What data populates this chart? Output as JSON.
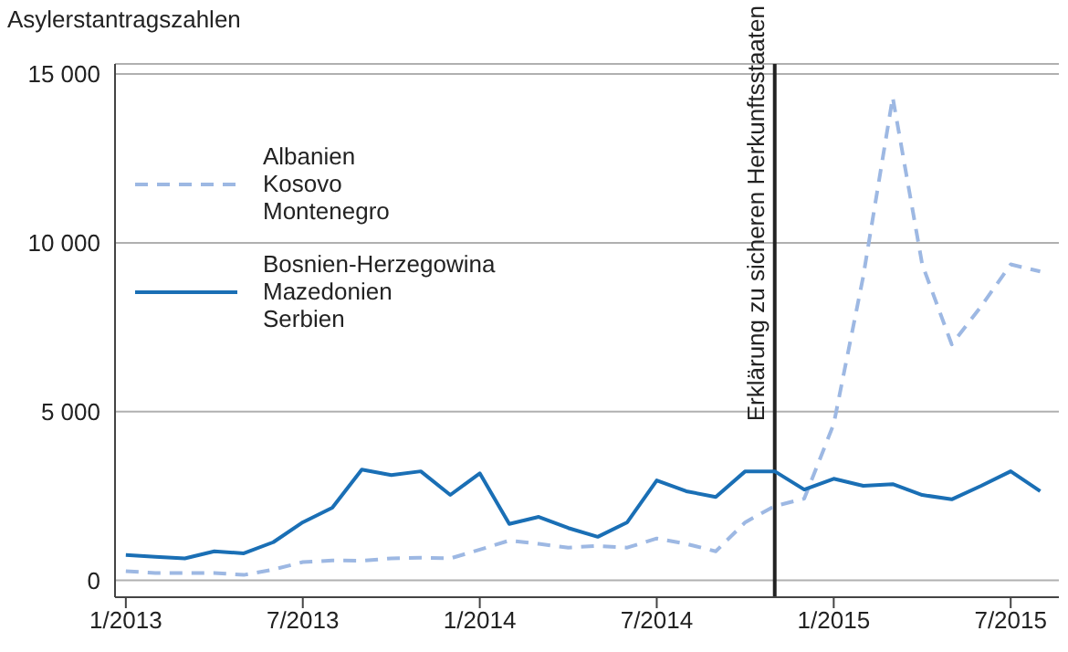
{
  "chart_data": {
    "type": "line",
    "ylabel": "Asylerstantragszahlen",
    "x": [
      "2013-01",
      "2013-02",
      "2013-03",
      "2013-04",
      "2013-05",
      "2013-06",
      "2013-07",
      "2013-08",
      "2013-09",
      "2013-10",
      "2013-11",
      "2013-12",
      "2014-01",
      "2014-02",
      "2014-03",
      "2014-04",
      "2014-05",
      "2014-06",
      "2014-07",
      "2014-08",
      "2014-09",
      "2014-10",
      "2014-11",
      "2014-12",
      "2015-01",
      "2015-02",
      "2015-03",
      "2015-04",
      "2015-05",
      "2015-06",
      "2015-07",
      "2015-08"
    ],
    "series": [
      {
        "name": "Albanien\nKosovo\nMontenegro",
        "color": "#9db8e3",
        "line_style": "dashed",
        "values": [
          270,
          220,
          220,
          220,
          160,
          320,
          540,
          590,
          580,
          650,
          670,
          650,
          910,
          1180,
          1080,
          970,
          1020,
          970,
          1240,
          1080,
          860,
          1720,
          2200,
          2420,
          4630,
          9000,
          14310,
          9360,
          6990,
          8120,
          9360,
          9150
        ]
      },
      {
        "name": "Bosnien-Herzegowina\nMazedonien\nSerbien",
        "color": "#1a6fb5",
        "line_style": "solid",
        "values": [
          750,
          700,
          650,
          860,
          800,
          1130,
          1720,
          2150,
          3280,
          3120,
          3230,
          2530,
          3170,
          1670,
          1880,
          1550,
          1290,
          1720,
          2960,
          2640,
          2470,
          3230,
          3230,
          2690,
          3010,
          2800,
          2850,
          2530,
          2400,
          2800,
          3230,
          2640
        ]
      }
    ],
    "xlim": [
      "2012-12-20",
      "2015-08-20"
    ],
    "xticks": [
      {
        "value": "2013-01",
        "label": "1/2013"
      },
      {
        "value": "2013-07",
        "label": "7/2013"
      },
      {
        "value": "2014-01",
        "label": "1/2014"
      },
      {
        "value": "2014-07",
        "label": "7/2014"
      },
      {
        "value": "2015-01",
        "label": "1/2015"
      },
      {
        "value": "2015-07",
        "label": "7/2015"
      }
    ],
    "ylim": [
      -500,
      15300
    ],
    "yticks": [
      0,
      {
        "value": 5000,
        "label": "5 000"
      },
      {
        "value": 10000,
        "label": "10 000"
      },
      {
        "value": 15000,
        "label": "15 000"
      }
    ],
    "grid": "y",
    "legend": "top left",
    "marker": "none",
    "ref_lines": [
      {
        "axis": "x",
        "value": "2014-11",
        "label": "Erklärung zu sicheren Herkunftsstaaten",
        "color": "#222222"
      }
    ]
  }
}
